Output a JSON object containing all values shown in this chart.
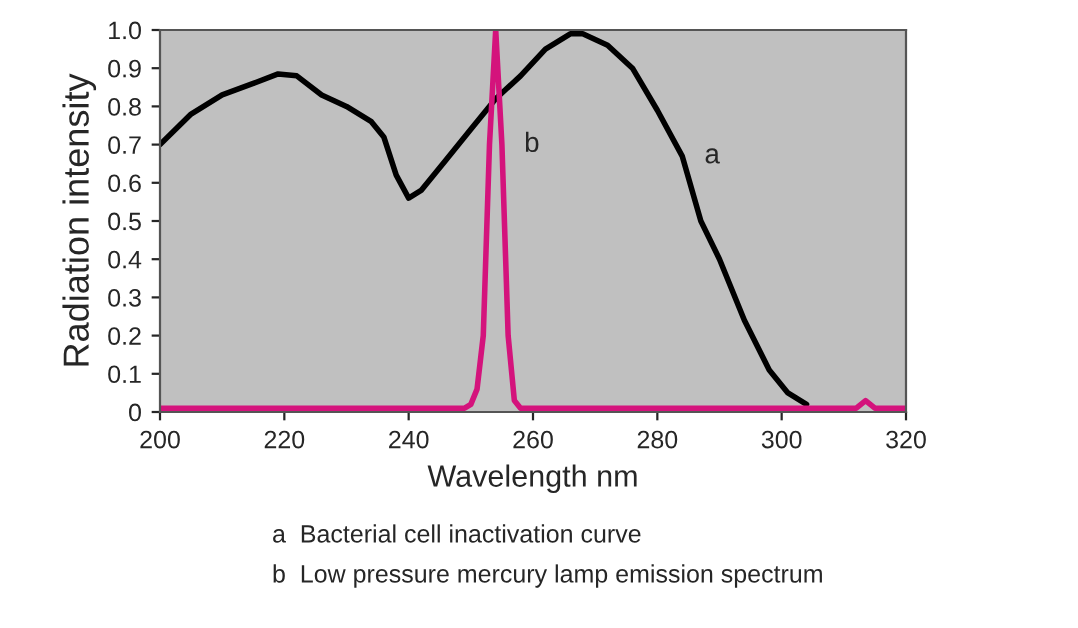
{
  "chart_data": {
    "type": "line",
    "xlabel": "Wavelength nm",
    "ylabel": "Radiation intensity",
    "xlim": [
      200,
      320
    ],
    "ylim": [
      0,
      1.0
    ],
    "xticks": [
      200,
      220,
      240,
      260,
      280,
      300,
      320
    ],
    "yticks": [
      0,
      0.1,
      0.2,
      0.3,
      0.4,
      0.5,
      0.6,
      0.7,
      0.8,
      0.9,
      {
        "value": 1,
        "label": "1.0"
      }
    ],
    "grid": false,
    "legend": false,
    "series": [
      {
        "name": "a",
        "color": "#000000",
        "x": [
          200,
          205,
          210,
          215,
          219,
          222,
          226,
          230,
          234,
          236,
          238,
          240,
          242,
          246,
          250,
          254,
          258,
          262,
          266,
          268,
          272,
          276,
          280,
          284,
          287,
          290,
          294,
          298,
          301,
          304
        ],
        "values": [
          0.7,
          0.78,
          0.83,
          0.86,
          0.885,
          0.88,
          0.83,
          0.8,
          0.76,
          0.72,
          0.62,
          0.56,
          0.58,
          0.66,
          0.74,
          0.82,
          0.88,
          0.95,
          0.99,
          0.99,
          0.96,
          0.9,
          0.79,
          0.67,
          0.5,
          0.4,
          0.24,
          0.11,
          0.05,
          0.02
        ]
      },
      {
        "name": "b",
        "color": "#d4137c",
        "x": [
          200,
          249,
          250,
          251,
          252,
          253,
          254,
          255,
          256,
          257,
          258,
          312,
          313.5,
          315,
          320
        ],
        "values": [
          0.01,
          0.01,
          0.02,
          0.06,
          0.2,
          0.7,
          1.0,
          0.7,
          0.2,
          0.03,
          0.01,
          0.01,
          0.03,
          0.01,
          0.01
        ]
      }
    ],
    "annotations": [
      "a  Bacterial cell inactivation curve",
      "b  Low pressure mercury lamp emission spectrum"
    ]
  }
}
